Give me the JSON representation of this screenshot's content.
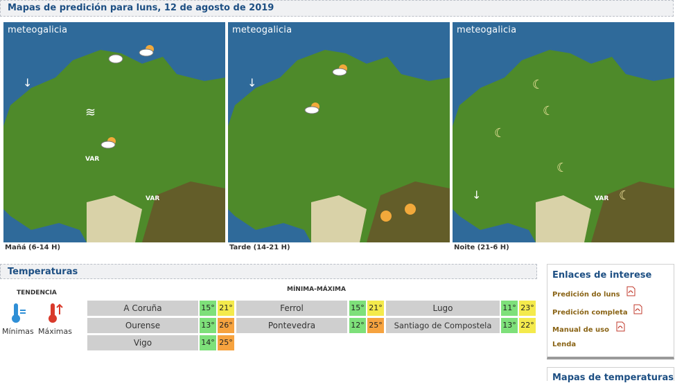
{
  "header": {
    "title": "Mapas de predición para luns, 12 de agosto de 2019"
  },
  "maps": [
    {
      "logo": "meteogalicia",
      "caption": "Mañá (6-14 H)",
      "label_var": "VAR",
      "label_var2": "VAR"
    },
    {
      "logo": "meteogalicia",
      "caption": "Tarde (14-21 H)"
    },
    {
      "logo": "meteogalicia",
      "caption": "Noite (21-6 H)",
      "label_var": "VAR"
    }
  ],
  "temperatures": {
    "title": "Temperaturas",
    "tendencia": "TENDENCIA",
    "minimas": "Mínimas",
    "maximas": "Máximas",
    "minmax_label": "MÍNIMA-MÁXIMA",
    "rows": [
      {
        "city": "A Coruña",
        "min": "15°",
        "max": "21°",
        "max_level": "warm"
      },
      {
        "city": "Ferrol",
        "min": "15°",
        "max": "21°",
        "max_level": "warm"
      },
      {
        "city": "Lugo",
        "min": "11°",
        "max": "23°",
        "max_level": "warm"
      },
      {
        "city": "Ourense",
        "min": "13°",
        "max": "26°",
        "max_level": "hot"
      },
      {
        "city": "Pontevedra",
        "min": "12°",
        "max": "25°",
        "max_level": "hot"
      },
      {
        "city": "Santiago de Compostela",
        "min": "13°",
        "max": "22°",
        "max_level": "warm"
      },
      {
        "city": "Vigo",
        "min": "14°",
        "max": "25°",
        "max_level": "hot"
      }
    ]
  },
  "sidebar": {
    "title": "Enlaces de interese",
    "links": [
      "Predición do luns",
      "Predición completa",
      "Manual de uso",
      "Lenda"
    ],
    "next_title": "Mapas de temperaturas"
  },
  "colors": {
    "sea": "#2f6a9a",
    "land": "#4e8a2a",
    "min_cell": "#7ee07a",
    "max_hot": "#f6a33f",
    "max_warm": "#f4ea4c",
    "heading": "#1d4f83",
    "link": "#8a6416"
  }
}
